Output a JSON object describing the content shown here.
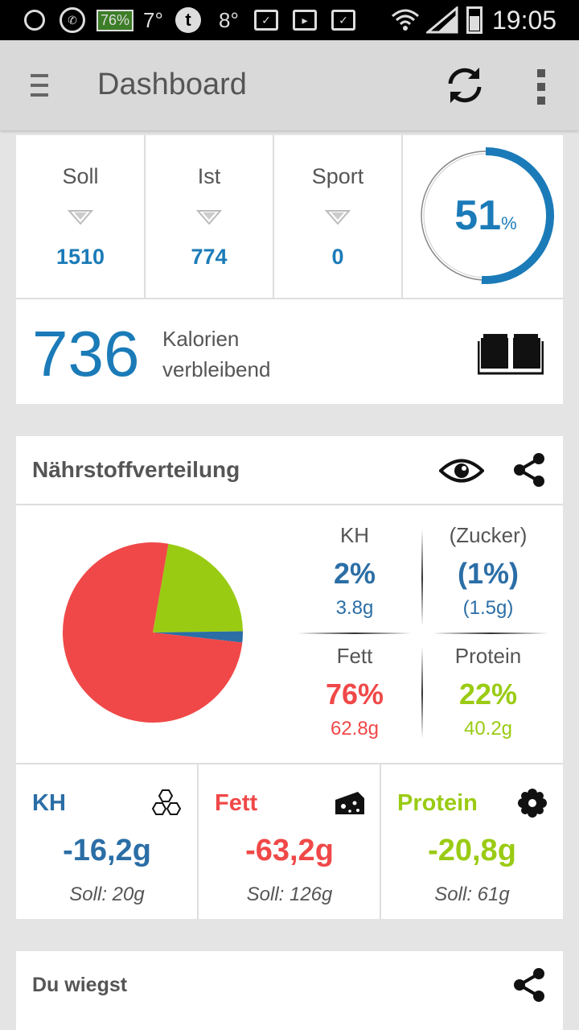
{
  "status_bar": {
    "battery_badge": "76%",
    "temp_1": "7°",
    "tumblr": "t",
    "temp_2": "8°",
    "clock": "19:05"
  },
  "app_bar": {
    "title": "Dashboard"
  },
  "summary": {
    "cells": [
      {
        "label": "Soll",
        "value": "1510"
      },
      {
        "label": "Ist",
        "value": "774"
      },
      {
        "label": "Sport",
        "value": "0"
      }
    ],
    "progress": {
      "value": "51",
      "unit": "%",
      "fraction": 0.51
    },
    "remaining": {
      "value": "736",
      "line1": "Kalorien",
      "line2": "verbleibend"
    }
  },
  "nutrients": {
    "title": "Nährstoffverteilung",
    "pie": {
      "kh_pct": 2,
      "fett_pct": 76,
      "protein_pct": 22
    },
    "grid": [
      {
        "label": "KH",
        "pct": "2%",
        "grams": "3.8g",
        "color": "#2b6ea6"
      },
      {
        "label": "(Zucker)",
        "pct": "(1%)",
        "grams": "(1.5g)",
        "color": "#2b6ea6"
      },
      {
        "label": "Fett",
        "pct": "76%",
        "grams": "62.8g",
        "color": "#f04848"
      },
      {
        "label": "Protein",
        "pct": "22%",
        "grams": "40.2g",
        "color": "#9acb13"
      }
    ],
    "macros": [
      {
        "label": "KH",
        "value": "-16,2g",
        "soll": "Soll: 20g",
        "icon": "hexagons-icon"
      },
      {
        "label": "Fett",
        "value": "-63,2g",
        "soll": "Soll: 126g",
        "icon": "cheese-icon"
      },
      {
        "label": "Protein",
        "value": "-20,8g",
        "soll": "Soll: 61g",
        "icon": "flower-icon"
      }
    ]
  },
  "weight": {
    "title": "Du wiegst"
  },
  "colors": {
    "accent_blue": "#1b7bb8",
    "kh_blue": "#2b6ea6",
    "fett_red": "#f04848",
    "protein_green": "#9acb13"
  }
}
